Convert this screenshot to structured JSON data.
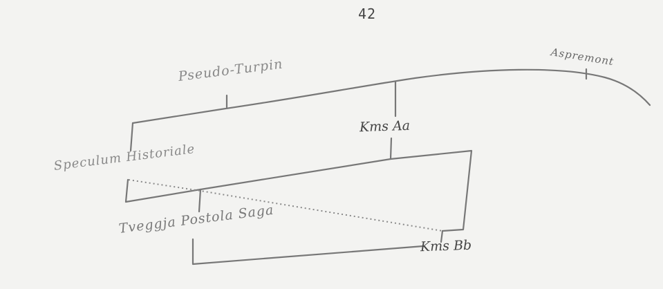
{
  "page": {
    "number": "42"
  },
  "stemma": {
    "nodes": {
      "aspremont": "Aspremont",
      "pseudo_turpin": "Pseudo-Turpin",
      "kms_aa": "Kms Aa",
      "speculum_historiale": "Speculum Historiale",
      "tveggja_postola_saga": "Tveggja Postola Saga",
      "kms_bb": "Kms Bb"
    }
  }
}
